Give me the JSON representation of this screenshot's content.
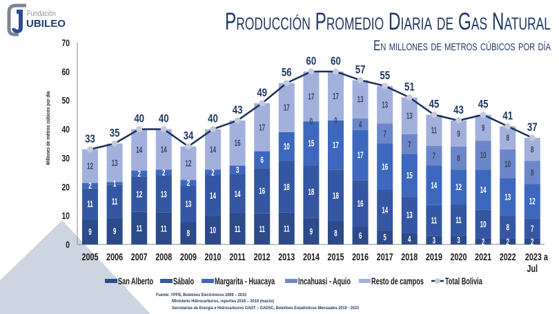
{
  "logo": {
    "line1": "Fundación",
    "line2": "UBILEO"
  },
  "chart_data": {
    "type": "bar",
    "stacked": true,
    "title": "Producción Promedio Diaria de Gas Natural",
    "subtitle": "En millones de metros cúbicos por día",
    "xlabel": "",
    "ylabel": "Millones de métros cúbicos por día",
    "ylim": [
      0,
      70
    ],
    "yticks": [
      "0",
      "10",
      "20",
      "30",
      "40",
      "50",
      "60",
      "70"
    ],
    "grid": false,
    "legend_position": "bottom",
    "categories": [
      "2005",
      "2006",
      "2007",
      "2008",
      "2009",
      "2010",
      "2011",
      "2012",
      "2013",
      "2014",
      "2015",
      "2016",
      "2017",
      "2018",
      "2019",
      "2020",
      "2021",
      "2022",
      "2023 a Jul"
    ],
    "x_tick_labels": [
      [
        "2005"
      ],
      [
        "2006"
      ],
      [
        "2007"
      ],
      [
        "2008"
      ],
      [
        "2009"
      ],
      [
        "2010"
      ],
      [
        "2011"
      ],
      [
        "2012"
      ],
      [
        "2013"
      ],
      [
        "2014"
      ],
      [
        "2015"
      ],
      [
        "2016"
      ],
      [
        "2017"
      ],
      [
        "2018"
      ],
      [
        "2019"
      ],
      [
        "2020"
      ],
      [
        "2021"
      ],
      [
        "2022"
      ],
      [
        "2023 a",
        "Jul"
      ]
    ],
    "series": [
      {
        "name": "San Alberto",
        "color": "#2d4a8a",
        "values": [
          9,
          9,
          11,
          11,
          8,
          10,
          11,
          11,
          11,
          9,
          8,
          6,
          5,
          4,
          3,
          3,
          2,
          2,
          2
        ]
      },
      {
        "name": "Sábalo",
        "color": "#3557a3",
        "values": [
          11,
          11,
          12,
          13,
          13,
          14,
          14,
          16,
          18,
          18,
          18,
          16,
          14,
          13,
          11,
          11,
          10,
          8,
          7
        ]
      },
      {
        "name": "Margarita - Huacaya",
        "color": "#3d68be",
        "values": [
          2,
          1,
          2,
          2,
          2,
          2,
          3,
          6,
          10,
          15,
          17,
          17,
          16,
          15,
          14,
          12,
          14,
          13,
          12
        ]
      },
      {
        "name": "Incahuasi - Aquio",
        "color": "#6c87c9",
        "values": [
          null,
          null,
          null,
          null,
          null,
          null,
          null,
          null,
          null,
          0,
          0,
          4,
          7,
          7,
          7,
          8,
          10,
          10,
          8
        ]
      },
      {
        "name": "Resto de campos",
        "color": "#a2b0dc",
        "values": [
          12,
          13,
          14,
          14,
          12,
          14,
          16,
          17,
          17,
          17,
          17,
          13,
          13,
          13,
          11,
          9,
          9,
          8,
          8
        ]
      }
    ],
    "line_series": {
      "name": "Total Bolivia",
      "color": "#1b2d5c",
      "marker_color": "#c4cadb",
      "values": [
        33,
        35,
        40,
        40,
        34,
        40,
        43,
        49,
        56,
        60,
        60,
        57,
        55,
        51,
        45,
        43,
        45,
        41,
        37
      ]
    }
  },
  "source": {
    "lines": [
      "Fuente: YPFB, Boletines Electrónicos 2009 – 2015",
      "Ministerio Hidrocarburos, reportes 2016 – 2019 (marzo)",
      "Secretarías de Energía e Hidrocarburos GADT – GADSC, Boletines Estadísticos Mensuales 2019 - 2023"
    ]
  }
}
